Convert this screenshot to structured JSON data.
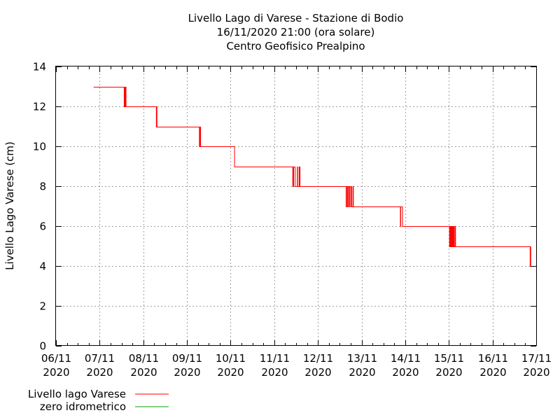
{
  "chart_data": {
    "type": "line",
    "title_lines": [
      "Livello Lago di Varese - Stazione di Bodio",
      "16/11/2020 21:00 (ora solare)",
      "Centro Geofisico Prealpino"
    ],
    "ylabel": "Livello Lago Varese (cm)",
    "xlabel": "",
    "ylim": [
      0,
      14
    ],
    "yticks": [
      0,
      2,
      4,
      6,
      8,
      10,
      12,
      14
    ],
    "xlim": [
      "2020-11-06 00:00",
      "2020-11-17 00:00"
    ],
    "xticks": [
      {
        "date": "06/11",
        "year": "2020"
      },
      {
        "date": "07/11",
        "year": "2020"
      },
      {
        "date": "08/11",
        "year": "2020"
      },
      {
        "date": "09/11",
        "year": "2020"
      },
      {
        "date": "10/11",
        "year": "2020"
      },
      {
        "date": "11/11",
        "year": "2020"
      },
      {
        "date": "12/11",
        "year": "2020"
      },
      {
        "date": "13/11",
        "year": "2020"
      },
      {
        "date": "14/11",
        "year": "2020"
      },
      {
        "date": "15/11",
        "year": "2020"
      },
      {
        "date": "16/11",
        "year": "2020"
      },
      {
        "date": "17/11",
        "year": "2020"
      }
    ],
    "grid": true,
    "legend_position": "bottom-left",
    "series": [
      {
        "name": "Livello lago Varese",
        "color": "#ff0000",
        "points": [
          [
            "2020-11-06 20:40",
            13
          ],
          [
            "2020-11-07 13:20",
            13
          ],
          [
            "2020-11-07 13:30",
            12
          ],
          [
            "2020-11-07 13:40",
            13
          ],
          [
            "2020-11-07 13:50",
            12
          ],
          [
            "2020-11-07 14:00",
            13
          ],
          [
            "2020-11-07 14:10",
            12
          ],
          [
            "2020-11-07 14:20",
            13
          ],
          [
            "2020-11-07 14:30",
            12
          ],
          [
            "2020-11-08 07:00",
            12
          ],
          [
            "2020-11-08 07:10",
            11
          ],
          [
            "2020-11-08 07:20",
            12
          ],
          [
            "2020-11-08 07:30",
            11
          ],
          [
            "2020-11-09 06:40",
            11
          ],
          [
            "2020-11-09 06:50",
            10
          ],
          [
            "2020-11-09 07:00",
            11
          ],
          [
            "2020-11-09 07:10",
            10
          ],
          [
            "2020-11-09 07:20",
            11
          ],
          [
            "2020-11-09 07:30",
            10
          ],
          [
            "2020-11-10 02:00",
            10
          ],
          [
            "2020-11-10 02:10",
            9
          ],
          [
            "2020-11-11 10:00",
            9
          ],
          [
            "2020-11-11 10:10",
            8
          ],
          [
            "2020-11-11 10:20",
            9
          ],
          [
            "2020-11-11 10:30",
            8
          ],
          [
            "2020-11-11 10:40",
            9
          ],
          [
            "2020-11-11 11:20",
            9
          ],
          [
            "2020-11-11 11:30",
            8
          ],
          [
            "2020-11-11 12:30",
            8
          ],
          [
            "2020-11-11 12:40",
            9
          ],
          [
            "2020-11-11 12:50",
            8
          ],
          [
            "2020-11-11 13:30",
            8
          ],
          [
            "2020-11-11 13:40",
            9
          ],
          [
            "2020-11-11 13:50",
            8
          ],
          [
            "2020-11-11 14:00",
            9
          ],
          [
            "2020-11-11 14:10",
            8
          ],
          [
            "2020-11-12 15:20",
            8
          ],
          [
            "2020-11-12 15:30",
            7
          ],
          [
            "2020-11-12 15:40",
            8
          ],
          [
            "2020-11-12 16:10",
            7
          ],
          [
            "2020-11-12 16:20",
            8
          ],
          [
            "2020-11-12 16:50",
            7
          ],
          [
            "2020-11-12 17:00",
            8
          ],
          [
            "2020-11-12 17:30",
            7
          ],
          [
            "2020-11-12 17:40",
            8
          ],
          [
            "2020-11-12 18:10",
            8
          ],
          [
            "2020-11-12 18:20",
            7
          ],
          [
            "2020-11-12 18:30",
            8
          ],
          [
            "2020-11-12 18:40",
            7
          ],
          [
            "2020-11-12 19:10",
            7
          ],
          [
            "2020-11-12 19:20",
            8
          ],
          [
            "2020-11-12 19:30",
            7
          ],
          [
            "2020-11-13 21:10",
            7
          ],
          [
            "2020-11-13 21:20",
            6
          ],
          [
            "2020-11-13 21:30",
            7
          ],
          [
            "2020-11-13 22:20",
            7
          ],
          [
            "2020-11-13 22:30",
            6
          ],
          [
            "2020-11-15 00:10",
            6
          ],
          [
            "2020-11-15 00:20",
            5
          ],
          [
            "2020-11-15 00:30",
            6
          ],
          [
            "2020-11-15 00:40",
            5
          ],
          [
            "2020-11-15 00:50",
            6
          ],
          [
            "2020-11-15 01:00",
            5
          ],
          [
            "2020-11-15 01:10",
            6
          ],
          [
            "2020-11-15 01:20",
            5
          ],
          [
            "2020-11-15 01:30",
            6
          ],
          [
            "2020-11-15 01:40",
            5
          ],
          [
            "2020-11-15 01:50",
            6
          ],
          [
            "2020-11-15 02:00",
            5
          ],
          [
            "2020-11-15 02:20",
            6
          ],
          [
            "2020-11-15 02:30",
            5
          ],
          [
            "2020-11-15 02:50",
            6
          ],
          [
            "2020-11-15 03:00",
            5
          ],
          [
            "2020-11-15 03:30",
            6
          ],
          [
            "2020-11-15 03:40",
            5
          ],
          [
            "2020-11-16 20:30",
            5
          ],
          [
            "2020-11-16 20:40",
            4
          ],
          [
            "2020-11-16 20:50",
            5
          ],
          [
            "2020-11-16 21:00",
            4
          ]
        ]
      },
      {
        "name": "zero idrometrico",
        "color": "#00a000",
        "points": []
      }
    ]
  }
}
